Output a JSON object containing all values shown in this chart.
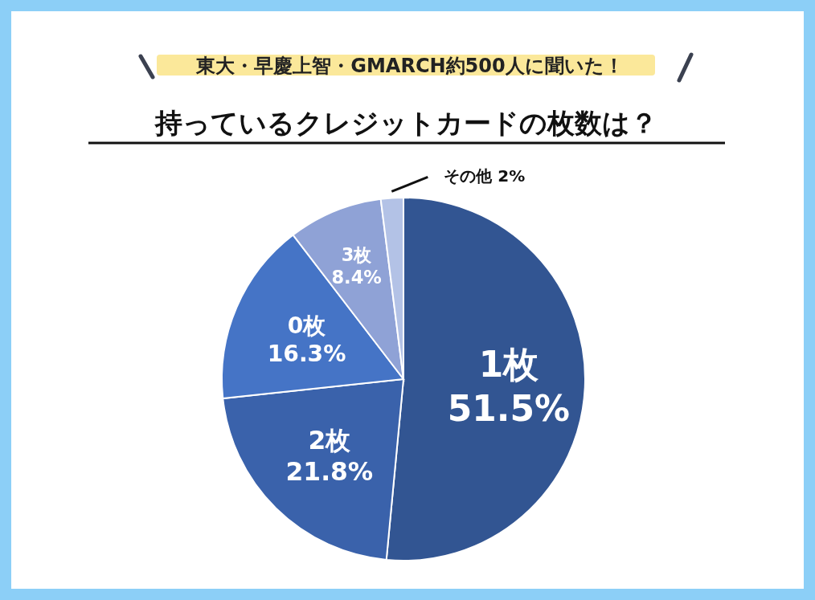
{
  "chart_data": {
    "type": "pie",
    "subtitle": "東大・早慶上智・GMARCH約500人に聞いた！",
    "title": "持っているクレジットカードの枚数は？",
    "categories": [
      "1枚",
      "2枚",
      "0枚",
      "3枚",
      "その他"
    ],
    "values": [
      51.5,
      21.8,
      16.3,
      8.4,
      2
    ],
    "value_labels": [
      "51.5%",
      "21.8%",
      "16.3%",
      "8.4%",
      "2%"
    ],
    "colors": [
      "#325592",
      "#3a62ab",
      "#4574c6",
      "#8fa2d6",
      "#b3c2e6"
    ]
  }
}
